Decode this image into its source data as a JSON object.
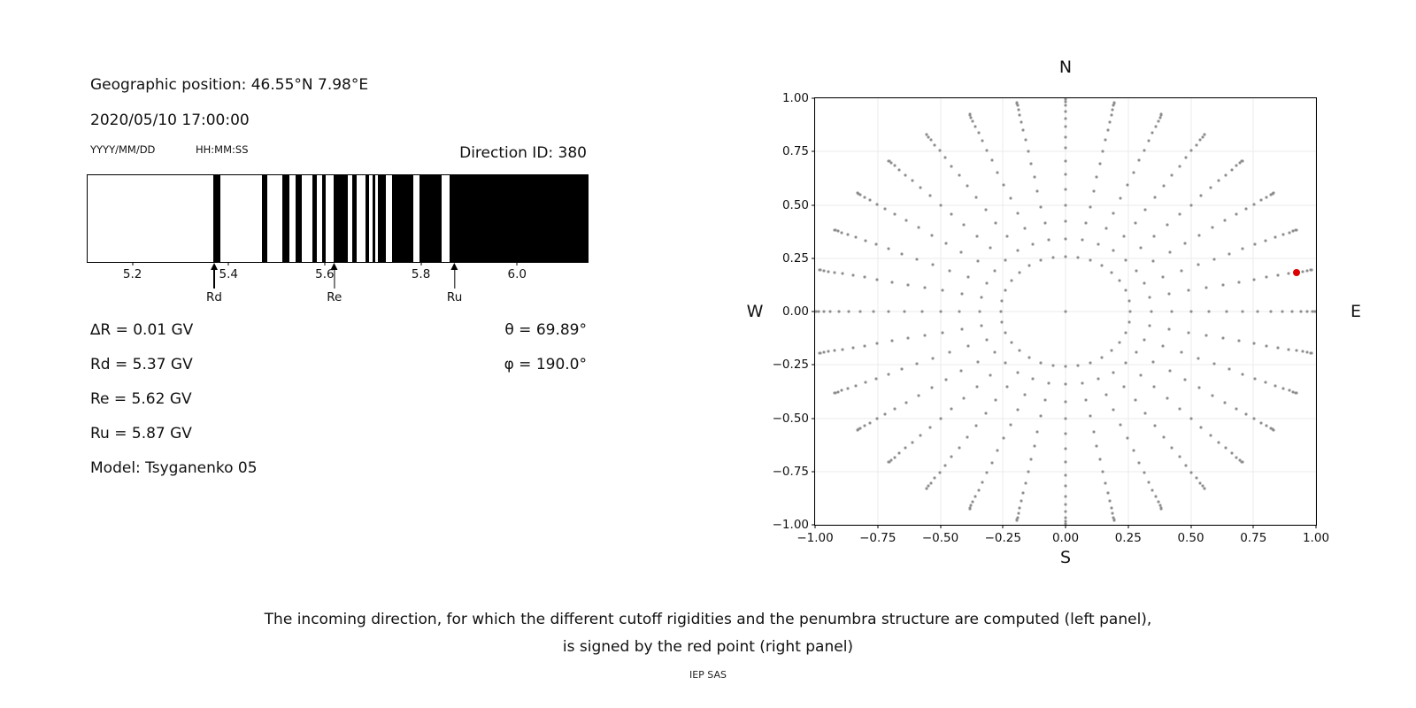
{
  "header": {
    "geographic_position": "Geographic position: 46.55°N 7.98°E",
    "datetime": "2020/05/10 17:00:00",
    "date_format_label": "YYYY/MM/DD",
    "time_format_label": "HH:MM:SS",
    "direction_id": "Direction ID: 380"
  },
  "parameters": {
    "delta_r": "∆R = 0.01 GV",
    "rd": "Rd = 5.37 GV",
    "re": "Re = 5.62 GV",
    "ru": "Ru = 5.87 GV",
    "model": "Model: Tsyganenko 05",
    "theta": "θ = 69.89°",
    "phi": "φ = 190.0°"
  },
  "caption": {
    "line1": "The incoming direction, for which the different cutoff rigidities and the penumbra structure are computed (left panel),",
    "line2": "is signed by the red point (right panel)",
    "credit": "IEP SAS"
  },
  "chart_data": [
    {
      "type": "bar",
      "subtype": "penumbra-barcode",
      "x_range": [
        5.105,
        6.145
      ],
      "x_ticks": {
        "values": [
          5.2,
          5.4,
          5.6,
          5.8,
          6.0
        ],
        "labels": [
          "5.2",
          "5.4",
          "5.6",
          "5.8",
          "6.0"
        ]
      },
      "allowed_color": "#ffffff",
      "forbidden_color": "#000000",
      "forbidden_bands_gv": [
        [
          5.367,
          5.382
        ],
        [
          5.468,
          5.479
        ],
        [
          5.51,
          5.525
        ],
        [
          5.538,
          5.551
        ],
        [
          5.572,
          5.582
        ],
        [
          5.593,
          5.601
        ],
        [
          5.617,
          5.646
        ],
        [
          5.655,
          5.664
        ],
        [
          5.683,
          5.69
        ],
        [
          5.697,
          5.703
        ],
        [
          5.708,
          5.725
        ],
        [
          5.738,
          5.783
        ],
        [
          5.796,
          5.842
        ],
        [
          5.857,
          6.145
        ]
      ],
      "cutoffs": [
        {
          "label": "Rd",
          "value_gv": 5.37
        },
        {
          "label": "Re",
          "value_gv": 5.62
        },
        {
          "label": "Ru",
          "value_gv": 5.87
        }
      ]
    },
    {
      "type": "scatter",
      "subtype": "incoming-direction-map",
      "compass": {
        "n": "N",
        "s": "S",
        "w": "W",
        "e": "E"
      },
      "xlim": [
        -1,
        1
      ],
      "ylim": [
        -1,
        1
      ],
      "x_ticks": {
        "values": [
          -1.0,
          -0.75,
          -0.5,
          -0.25,
          0.0,
          0.25,
          0.5,
          0.75,
          1.0
        ],
        "labels": [
          "−1.00",
          "−0.75",
          "−0.50",
          "−0.25",
          "0.00",
          "0.25",
          "0.50",
          "0.75",
          "1.00"
        ]
      },
      "y_ticks": {
        "values": [
          1.0,
          0.75,
          0.5,
          0.25,
          0.0,
          -0.25,
          -0.5,
          -0.75,
          -1.0
        ],
        "labels": [
          "1.00",
          "0.75",
          "0.50",
          "0.25",
          "0.00",
          "−0.25",
          "−0.50",
          "−0.75",
          "−1.00"
        ]
      },
      "grid": true,
      "grid_color": "#ebebeb",
      "dot_color": "#8d8d8d",
      "direction_grid": {
        "azimuth_count": 32,
        "azimuth_step_deg": 11.25,
        "zenith_min_deg": 15,
        "zenith_max_deg": 90,
        "zenith_step_deg": 5,
        "radius_rule": "sin(zenith)",
        "includes_center_point": true
      },
      "red_point": {
        "x": 0.9209,
        "y": 0.1832,
        "color": "#dc0000",
        "zenith_deg": 69.89,
        "azimuth_deg": 11.25
      }
    }
  ]
}
